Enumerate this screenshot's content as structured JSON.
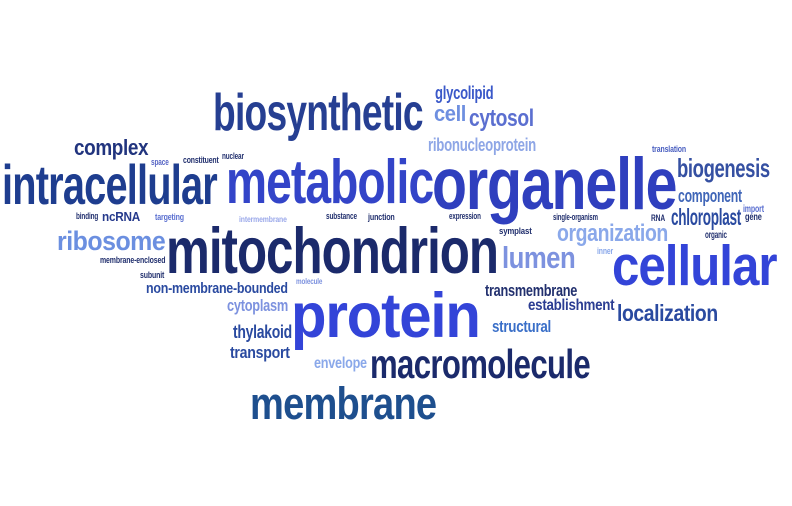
{
  "words": [
    {
      "text": "biosynthetic",
      "color": "#263f92"
    },
    {
      "text": "glycolipid",
      "color": "#3a58c9"
    },
    {
      "text": "cell",
      "color": "#6e8fe0"
    },
    {
      "text": "cytosol",
      "color": "#5b6fd0"
    },
    {
      "text": "ribonucleoprotein",
      "color": "#8ea6e6"
    },
    {
      "text": "complex",
      "color": "#21347e"
    },
    {
      "text": "space",
      "color": "#5866c5"
    },
    {
      "text": "constituent",
      "color": "#22306e"
    },
    {
      "text": "nuclear",
      "color": "#22306e"
    },
    {
      "text": "translation",
      "color": "#4a5fc0"
    },
    {
      "text": "intracellular",
      "color": "#1e3d8f"
    },
    {
      "text": "metabolic",
      "color": "#3344c8"
    },
    {
      "text": "organelle",
      "color": "#2f3fbe"
    },
    {
      "text": "biogenesis",
      "color": "#3550a2"
    },
    {
      "text": "component",
      "color": "#4066b8"
    },
    {
      "text": "binding",
      "color": "#22306e"
    },
    {
      "text": "ncRNA",
      "color": "#263a8c"
    },
    {
      "text": "targeting",
      "color": "#5a6fd0"
    },
    {
      "text": "intermembrane",
      "color": "#9aa8ea"
    },
    {
      "text": "substance",
      "color": "#22306e"
    },
    {
      "text": "junction",
      "color": "#22306e"
    },
    {
      "text": "expression",
      "color": "#22306e"
    },
    {
      "text": "single-organism",
      "color": "#22306e"
    },
    {
      "text": "RNA",
      "color": "#22306e"
    },
    {
      "text": "chloroplast",
      "color": "#2a4aa0"
    },
    {
      "text": "import",
      "color": "#5a6fd0"
    },
    {
      "text": "gene",
      "color": "#22306e"
    },
    {
      "text": "organic",
      "color": "#22306e"
    },
    {
      "text": "ribosome",
      "color": "#6b8fe0"
    },
    {
      "text": "mitochondrion",
      "color": "#1b2a6b"
    },
    {
      "text": "symplast",
      "color": "#22306e"
    },
    {
      "text": "organization",
      "color": "#8aa8ea"
    },
    {
      "text": "inner",
      "color": "#8aa8ea"
    },
    {
      "text": "membrane-enclosed",
      "color": "#22306e"
    },
    {
      "text": "lumen",
      "color": "#7d92df"
    },
    {
      "text": "cellular",
      "color": "#3344d8"
    },
    {
      "text": "subunit",
      "color": "#22306e"
    },
    {
      "text": "molecule",
      "color": "#7d92df"
    },
    {
      "text": "non-membrane-bounded",
      "color": "#2a4aa0"
    },
    {
      "text": "transmembrane",
      "color": "#22306e"
    },
    {
      "text": "cytoplasm",
      "color": "#7d92df"
    },
    {
      "text": "protein",
      "color": "#3344d8"
    },
    {
      "text": "establishment",
      "color": "#2b3d92"
    },
    {
      "text": "localization",
      "color": "#2a4aa0"
    },
    {
      "text": "thylakoid",
      "color": "#2a4aa0"
    },
    {
      "text": "structural",
      "color": "#3a6fc8"
    },
    {
      "text": "transport",
      "color": "#2a4aa0"
    },
    {
      "text": "envelope",
      "color": "#8aa8ea"
    },
    {
      "text": "macromolecule",
      "color": "#1b2a6b"
    },
    {
      "text": "membrane",
      "color": "#1e4f8e"
    }
  ]
}
